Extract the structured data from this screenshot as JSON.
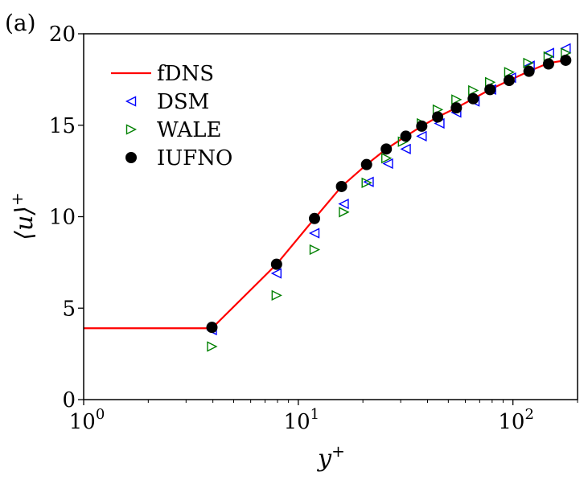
{
  "chart_data": {
    "type": "scatter",
    "panel_label": "(a)",
    "xlabel": "y",
    "xlabel_sup": "+",
    "ylabel": "⟨u⟩",
    "ylabel_sup": "+",
    "xscale": "log",
    "xlim": [
      1,
      200
    ],
    "ylim": [
      0,
      20
    ],
    "yticks": [
      0,
      5,
      10,
      15,
      20
    ],
    "xticks": [
      {
        "value": 1,
        "base": "10",
        "exp": "0"
      },
      {
        "value": 10,
        "base": "10",
        "exp": "1"
      },
      {
        "value": 100,
        "base": "10",
        "exp": "2"
      }
    ],
    "grid": false,
    "legend_position": "top-left",
    "series": [
      {
        "name": "fDNS",
        "kind": "line",
        "color": "#ff0000",
        "x": [
          1.0,
          2.0,
          3.0,
          3.96,
          7.92,
          11.9,
          15.9,
          20.8,
          25.7,
          31.7,
          37.6,
          44.6,
          54.5,
          65.3,
          78.2,
          96.0,
          118.8,
          146.5,
          176.2
        ],
        "y": [
          3.9,
          3.9,
          3.9,
          3.9,
          7.4,
          9.9,
          11.65,
          12.85,
          13.7,
          14.4,
          14.95,
          15.45,
          15.95,
          16.45,
          16.95,
          17.45,
          17.95,
          18.4,
          18.55
        ]
      },
      {
        "name": "DSM",
        "kind": "marker",
        "marker": "triangle-left",
        "color": "#0000ff",
        "x": [
          3.96,
          7.92,
          11.9,
          16.3,
          21.3,
          26.2,
          31.7,
          37.6,
          45.5,
          54.5,
          66.3,
          79.2,
          98.0,
          119.8,
          147.5,
          176.2
        ],
        "y": [
          3.8,
          6.9,
          9.1,
          10.7,
          11.9,
          12.9,
          13.7,
          14.4,
          15.1,
          15.7,
          16.3,
          16.95,
          17.6,
          18.25,
          18.95,
          19.2
        ]
      },
      {
        "name": "WALE",
        "kind": "marker",
        "marker": "triangle-right",
        "color": "#008000",
        "x": [
          3.96,
          7.92,
          11.9,
          16.3,
          20.8,
          25.7,
          30.7,
          37.6,
          44.6,
          54.5,
          65.3,
          78.2,
          96.0,
          117.8,
          146.5,
          176.2
        ],
        "y": [
          2.9,
          5.7,
          8.2,
          10.25,
          11.85,
          13.2,
          14.1,
          15.1,
          15.85,
          16.4,
          16.9,
          17.35,
          17.9,
          18.4,
          18.75,
          18.95
        ]
      },
      {
        "name": "IUFNO",
        "kind": "marker",
        "marker": "circle",
        "color": "#000000",
        "x": [
          3.96,
          7.92,
          11.9,
          15.9,
          20.8,
          25.7,
          31.7,
          37.6,
          44.6,
          54.5,
          65.3,
          78.2,
          96.0,
          118.8,
          146.5,
          176.2
        ],
        "y": [
          3.95,
          7.4,
          9.9,
          11.65,
          12.85,
          13.7,
          14.4,
          14.95,
          15.45,
          15.95,
          16.45,
          16.95,
          17.45,
          17.95,
          18.35,
          18.55
        ]
      }
    ]
  }
}
